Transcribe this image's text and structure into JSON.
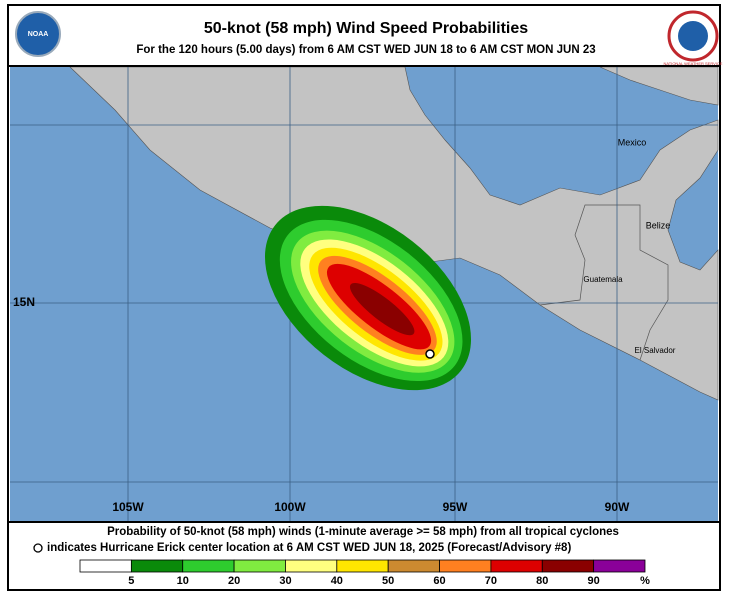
{
  "header": {
    "title": "50-knot (58 mph) Wind Speed Probabilities",
    "subtitle": "For the 120 hours (5.00 days) from 6 AM CST WED JUN 18 to 6 AM CST MON JUN 23",
    "logos": [
      "NOAA",
      "NATIONAL WEATHER SERVICE"
    ]
  },
  "map": {
    "place_labels": [
      "Mexico",
      "Belize",
      "Guatemala",
      "El Salvador"
    ],
    "longitude_labels": [
      "105W",
      "100W",
      "95W",
      "90W"
    ],
    "latitude_labels": [
      "15N"
    ]
  },
  "caption": [
    "Probability of 50-knot (58 mph) winds (1-minute average >= 58 mph) from all tropical cyclones",
    "indicates Hurricane Erick center location at 6 AM CST WED JUN 18, 2025 (Forecast/Advisory #8)"
  ],
  "legend": {
    "colors": [
      "#ffffff",
      "#0a8a0a",
      "#2ecc2e",
      "#80ec40",
      "#ffff80",
      "#ffe600",
      "#cc8a30",
      "#ff8020",
      "#dd0000",
      "#8a0000",
      "#8a0099"
    ],
    "ticks": [
      5,
      10,
      20,
      30,
      40,
      50,
      60,
      70,
      80,
      90
    ],
    "unit": "%"
  }
}
